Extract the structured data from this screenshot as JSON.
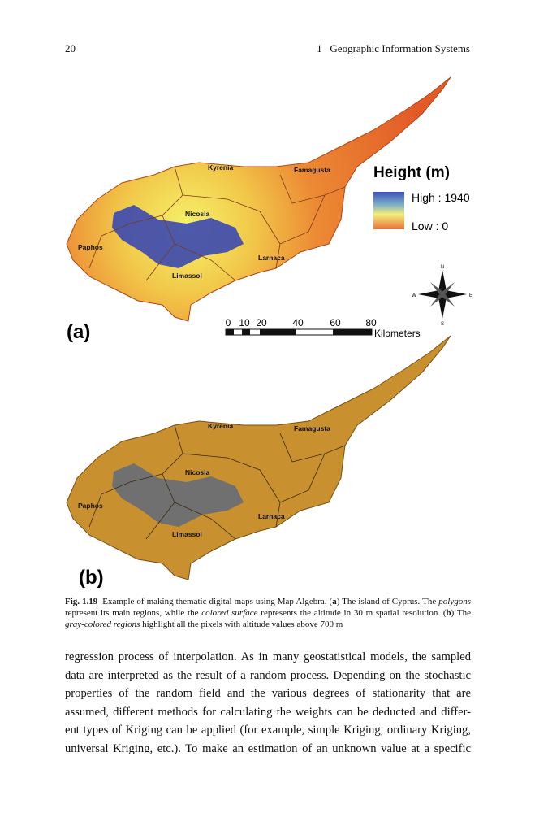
{
  "header": {
    "page_number": "20",
    "running_title": "1   Geographic Information Systems"
  },
  "figure": {
    "map_a": {
      "panel_label": "(a)",
      "cities": [
        "Kyrenia",
        "Famagusta",
        "Nicosia",
        "Paphos",
        "Larnaca",
        "Limassol"
      ],
      "legend": {
        "title": "Height (m)",
        "high": "High : 1940",
        "low": "Low : 0"
      },
      "scale": {
        "ticks": [
          "0",
          "10",
          "20",
          "40",
          "60",
          "80"
        ],
        "unit": "Kilometers"
      },
      "compass": {
        "n": "N",
        "w": "W",
        "e": "E",
        "s": "S"
      }
    },
    "map_b": {
      "panel_label": "(b)",
      "cities": [
        "Kyrenia",
        "Famagusta",
        "Nicosia",
        "Paphos",
        "Larnaca",
        "Limassol"
      ]
    },
    "caption": {
      "runs": [
        "Fig. 1.19",
        "Example of making thematic digital maps using Map Algebra. (",
        "a",
        ") The island of Cyprus. The ",
        "polygons",
        " represent its main regions, while the ",
        "colored surface",
        " represents the altitude in 30 m spatial resolution. (",
        "b",
        ") The ",
        "gray-colored regions",
        " highlight all the pixels with altitude values above 700 m"
      ]
    }
  },
  "body": {
    "lines": [
      "regression process of interpolation. As in many geostatistical models, the sampled",
      "data are interpreted as the result of a random process. Depending on the stochastic",
      "properties of the random field and the various degrees of stationarity that are",
      "assumed, different methods for calculating the weights can be deducted and differ-",
      "ent types of Kriging can be applied (for example, simple Kriging, ordinary Kriging,",
      "universal Kriging, etc.). To make an estimation of an unknown value at a specific"
    ]
  }
}
